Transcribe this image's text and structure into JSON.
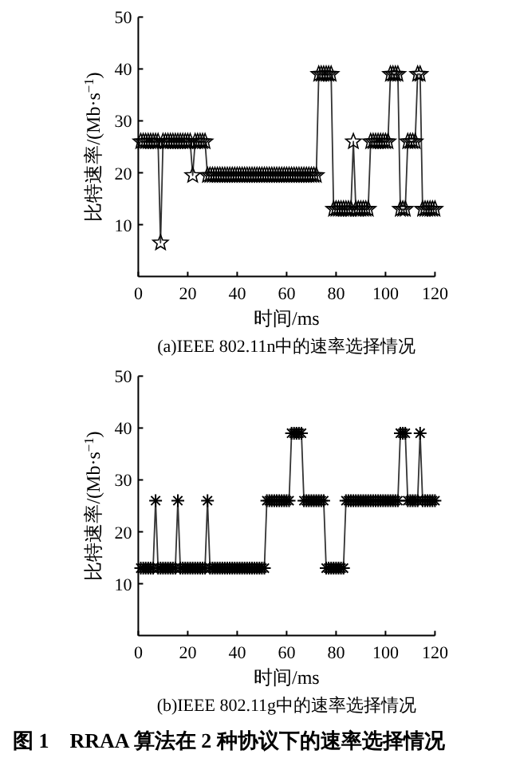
{
  "chart_data": [
    {
      "type": "line",
      "title": "(a)IEEE 802.11n中的速率选择情况",
      "xlabel": "时间/ms",
      "ylabel": "比特速率/(Mb·s$^{−1}$)",
      "xlim": [
        0,
        120
      ],
      "ylim": [
        0,
        50
      ],
      "xticks": [
        0,
        20,
        40,
        60,
        80,
        100,
        120
      ],
      "yticks": [
        10,
        20,
        30,
        40,
        50
      ],
      "grid": false,
      "marker": "star",
      "line_style": "solid",
      "series": [
        {
          "color": "#000000",
          "x": [
            1,
            2,
            3,
            4,
            5,
            6,
            7,
            8,
            9,
            10,
            11,
            12,
            13,
            14,
            15,
            16,
            17,
            18,
            19,
            20,
            21,
            22,
            23,
            24,
            25,
            26,
            27,
            28,
            29,
            30,
            31,
            32,
            33,
            34,
            35,
            36,
            37,
            38,
            39,
            40,
            41,
            42,
            43,
            44,
            45,
            46,
            47,
            48,
            49,
            50,
            51,
            52,
            53,
            54,
            55,
            56,
            57,
            58,
            59,
            60,
            61,
            62,
            63,
            64,
            65,
            66,
            67,
            68,
            69,
            70,
            71,
            72,
            73,
            74,
            75,
            76,
            77,
            78,
            79,
            80,
            81,
            82,
            83,
            84,
            85,
            86,
            87,
            88,
            89,
            90,
            91,
            92,
            93,
            94,
            95,
            96,
            97,
            98,
            99,
            100,
            101,
            102,
            103,
            104,
            105,
            106,
            107,
            108,
            109,
            110,
            111,
            112,
            113,
            114,
            115,
            116,
            117,
            118,
            119,
            120
          ],
          "values": [
            26,
            26,
            26,
            26,
            26,
            26,
            26,
            26,
            6.5,
            26,
            26,
            26,
            26,
            26,
            26,
            26,
            26,
            26,
            26,
            26,
            26,
            19.5,
            26,
            26,
            26,
            26,
            26,
            19.5,
            19.5,
            19.5,
            19.5,
            19.5,
            19.5,
            19.5,
            19.5,
            19.5,
            19.5,
            19.5,
            19.5,
            19.5,
            19.5,
            19.5,
            19.5,
            19.5,
            19.5,
            19.5,
            19.5,
            19.5,
            19.5,
            19.5,
            19.5,
            19.5,
            19.5,
            19.5,
            19.5,
            19.5,
            19.5,
            19.5,
            19.5,
            19.5,
            19.5,
            19.5,
            19.5,
            19.5,
            19.5,
            19.5,
            19.5,
            19.5,
            19.5,
            19.5,
            19.5,
            19.5,
            39,
            39,
            39,
            39,
            39,
            39,
            13,
            13,
            13,
            13,
            13,
            13,
            13,
            13,
            26,
            13,
            13,
            13,
            13,
            13,
            13,
            26,
            26,
            26,
            26,
            26,
            26,
            26,
            26,
            39,
            39,
            39,
            39,
            13,
            13,
            13,
            26,
            26,
            26,
            26,
            39,
            39,
            13,
            13,
            13,
            13,
            13,
            13
          ]
        }
      ]
    },
    {
      "type": "line",
      "title": "(b)IEEE 802.11g中的速率选择情况",
      "xlabel": "时间/ms",
      "ylabel": "比特速率/(Mb·s$^{−1}$)",
      "xlim": [
        0,
        120
      ],
      "ylim": [
        0,
        50
      ],
      "xticks": [
        0,
        20,
        40,
        60,
        80,
        100,
        120
      ],
      "yticks": [
        10,
        20,
        30,
        40,
        50
      ],
      "grid": false,
      "marker": "cross",
      "line_style": "solid",
      "annotations": [
        "图 1　RRAA 算法在 2 种协议下的速率选择情况"
      ],
      "series": [
        {
          "color": "#000000",
          "x": [
            1,
            2,
            3,
            4,
            5,
            6,
            7,
            8,
            9,
            10,
            11,
            12,
            13,
            14,
            15,
            16,
            17,
            18,
            19,
            20,
            21,
            22,
            23,
            24,
            25,
            26,
            27,
            28,
            29,
            30,
            31,
            32,
            33,
            34,
            35,
            36,
            37,
            38,
            39,
            40,
            41,
            42,
            43,
            44,
            45,
            46,
            47,
            48,
            49,
            50,
            51,
            52,
            53,
            54,
            55,
            56,
            57,
            58,
            59,
            60,
            61,
            62,
            63,
            64,
            65,
            66,
            67,
            68,
            69,
            70,
            71,
            72,
            73,
            74,
            75,
            76,
            77,
            78,
            79,
            80,
            81,
            82,
            83,
            84,
            85,
            86,
            87,
            88,
            89,
            90,
            91,
            92,
            93,
            94,
            95,
            96,
            97,
            98,
            99,
            100,
            101,
            102,
            103,
            104,
            105,
            106,
            107,
            108,
            109,
            110,
            111,
            112,
            113,
            114,
            115,
            116,
            117,
            118,
            119,
            120
          ],
          "values": [
            13,
            13,
            13,
            13,
            13,
            13,
            26,
            13,
            13,
            13,
            13,
            13,
            13,
            13,
            13,
            26,
            13,
            13,
            13,
            13,
            13,
            13,
            13,
            13,
            13,
            13,
            13,
            26,
            13,
            13,
            13,
            13,
            13,
            13,
            13,
            13,
            13,
            13,
            13,
            13,
            13,
            13,
            13,
            13,
            13,
            13,
            13,
            13,
            13,
            13,
            13,
            26,
            26,
            26,
            26,
            26,
            26,
            26,
            26,
            26,
            26,
            39,
            39,
            39,
            39,
            39,
            26,
            26,
            26,
            26,
            26,
            26,
            26,
            26,
            26,
            13,
            13,
            13,
            13,
            13,
            13,
            13,
            13,
            26,
            26,
            26,
            26,
            26,
            26,
            26,
            26,
            26,
            26,
            26,
            26,
            26,
            26,
            26,
            26,
            26,
            26,
            26,
            26,
            26,
            26,
            39,
            39,
            39,
            26,
            26,
            26,
            26,
            26,
            39,
            26,
            26,
            26,
            26,
            26,
            26
          ]
        }
      ]
    }
  ]
}
